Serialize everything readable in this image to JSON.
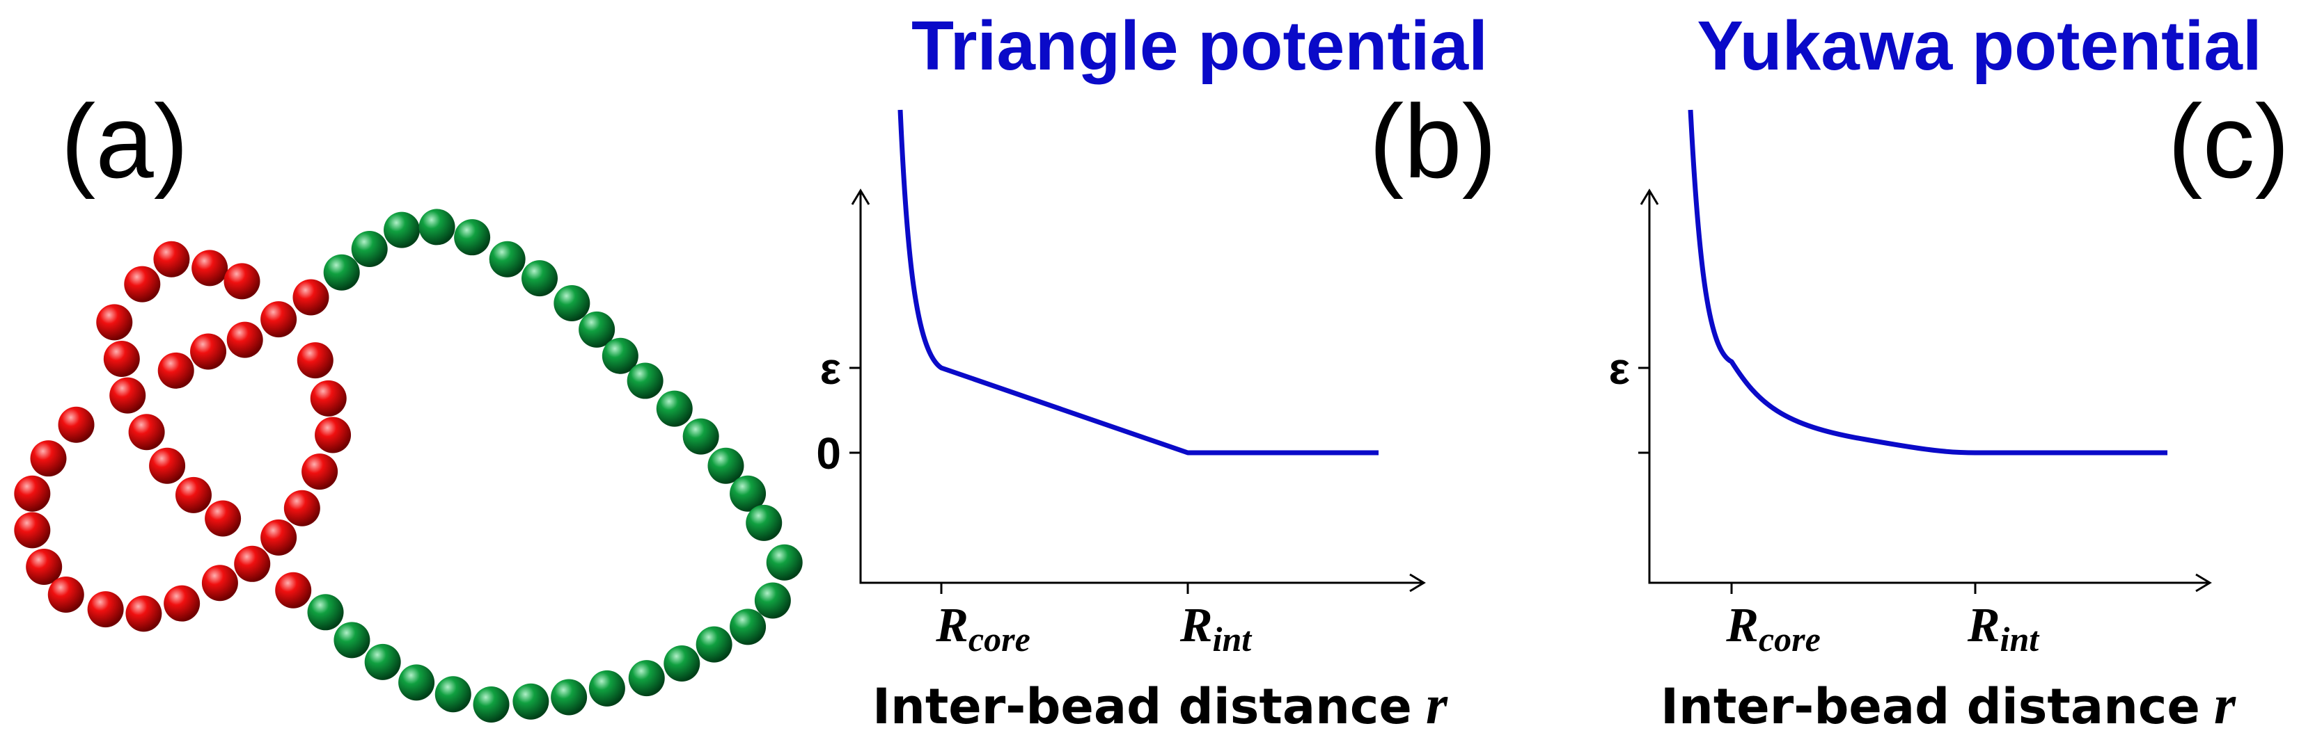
{
  "panels": [
    {
      "label": "(a)"
    },
    {
      "label": "(b)",
      "title": "Triangle potential",
      "y_labels": [
        "ε",
        "0"
      ],
      "x_labels": [
        {
          "symbol": "R",
          "subscript": "core"
        },
        {
          "symbol": "R",
          "subscript": "int"
        }
      ],
      "x_axis_label": {
        "text": "Inter-bead distance",
        "variable": "r"
      }
    },
    {
      "label": "(c)",
      "title": "Yukawa potential",
      "y_labels": [
        "ε"
      ],
      "x_labels": [
        {
          "symbol": "R",
          "subscript": "core"
        },
        {
          "symbol": "R",
          "subscript": "int"
        }
      ],
      "x_axis_label": {
        "text": "Inter-bead distance",
        "variable": "r"
      }
    }
  ]
}
